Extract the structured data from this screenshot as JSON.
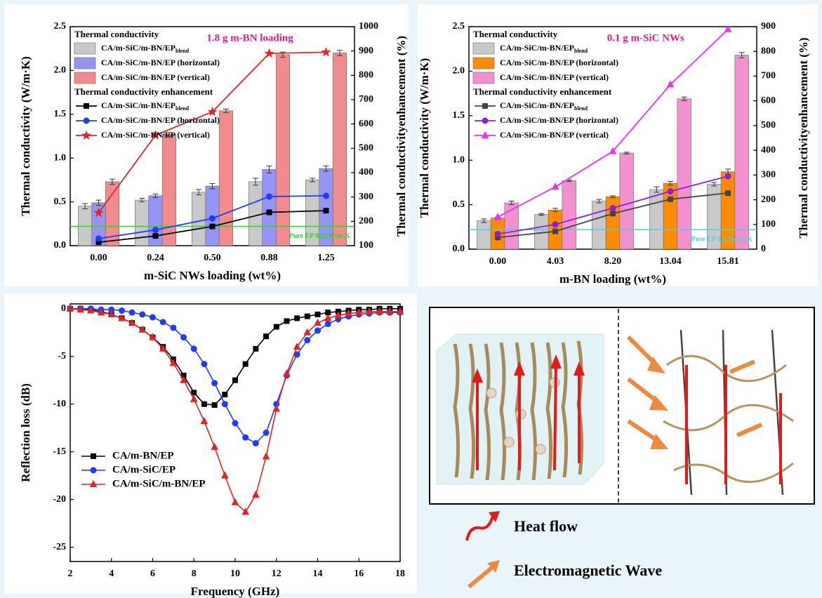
{
  "chart_data": [
    {
      "type": "bar_line",
      "categories": [
        "0.00",
        "0.24",
        "0.50",
        "0.88",
        "1.25"
      ],
      "xlabel": "m-SiC NWs loading (wt%)",
      "ylabel": "Thermal conductivity (W/m·K)",
      "y2label": "Thermal conductivityenhancement (%)",
      "ylim": [
        0,
        2.5
      ],
      "yticks": [
        {
          "value": 0,
          "label": "0.0"
        },
        0.5,
        {
          "value": 1,
          "label": "1.0"
        },
        1.5,
        {
          "value": 2,
          "label": "2.0"
        },
        2.5
      ],
      "y2lim": [
        100,
        1000
      ],
      "y2ticks": [
        100,
        200,
        300,
        400,
        500,
        600,
        700,
        800,
        900,
        1000
      ],
      "annotation": "1.8 g m-BN loading",
      "annotation_color": "#e8198b",
      "reference": {
        "value": 0.22,
        "label": "Pure EP 0.22W/m·K",
        "color": "#2fd12f"
      },
      "legend_groups": [
        "Thermal conductivity",
        "Thermal conductivity enhancement"
      ],
      "series": [
        {
          "name": "CA/m-SiC/m-BN/EP",
          "subscript": "blend",
          "type": "bar",
          "color": "#c9c9c9",
          "values": [
            0.45,
            0.52,
            0.61,
            0.73,
            0.75
          ],
          "errors": [
            0.03,
            0.02,
            0.03,
            0.04,
            0.02
          ]
        },
        {
          "name": "CA/m-SiC/m-BN/EP (horizontal)",
          "type": "bar",
          "color": "#9494f4",
          "values": [
            0.49,
            0.57,
            0.68,
            0.87,
            0.88
          ],
          "errors": [
            0.03,
            0.02,
            0.03,
            0.04,
            0.03
          ]
        },
        {
          "name": "CA/m-SiC/m-BN/EP (vertical)",
          "type": "bar",
          "color": "#f28c8c",
          "values": [
            0.73,
            1.27,
            1.54,
            2.18,
            2.2
          ],
          "errors": [
            0.03,
            0.02,
            0.02,
            0.03,
            0.03
          ]
        },
        {
          "name": "CA/m-SiC/m-BN/EP",
          "subscript": "blend",
          "type": "line",
          "axis": "y2",
          "color": "#000000",
          "marker": "square",
          "values": [
            114,
            140,
            179,
            237,
            244
          ]
        },
        {
          "name": "CA/m-SiC/m-BN/EP (horizontal)",
          "type": "line",
          "axis": "y2",
          "color": "#1f3bff",
          "marker": "circle",
          "values": [
            129,
            165,
            212,
            302,
            305
          ]
        },
        {
          "name": "CA/m-SiC/m-BN/EP (vertical)",
          "type": "line",
          "axis": "y2",
          "color": "#e32222",
          "marker": "star",
          "values": [
            235,
            554,
            650,
            890,
            895
          ]
        }
      ]
    },
    {
      "type": "bar_line",
      "categories": [
        "0.00",
        "4.03",
        "8.20",
        "13.04",
        "15.81"
      ],
      "xlabel": "m-BN loading (wt%)",
      "ylabel": "Thermal conductivity (W/m·K)",
      "y2label": "Thermal conductivityenhancement (%)",
      "ylim": [
        0,
        2.5
      ],
      "yticks": [
        {
          "value": 0,
          "label": "0.0"
        },
        0.5,
        {
          "value": 1,
          "label": "1.0"
        },
        1.5,
        {
          "value": 2,
          "label": "2.0"
        },
        2.5
      ],
      "y2lim": [
        0,
        900
      ],
      "y2ticks": [
        0,
        100,
        200,
        300,
        400,
        500,
        600,
        700,
        800,
        900
      ],
      "annotation": "0.1 g m-SiC NWs",
      "annotation_color": "#e8198b",
      "reference": {
        "value": 0.22,
        "label": "Pure EP 0.22W/m·K",
        "color": "#3cd6e0"
      },
      "legend_groups": [
        "Thermal conductivity",
        "Thermal conductivity enhancement"
      ],
      "series": [
        {
          "name": "CA/m-SiC/m-BN/EP",
          "subscript": "blend",
          "type": "bar",
          "color": "#c9c9c9",
          "values": [
            0.32,
            0.39,
            0.54,
            0.67,
            0.73
          ],
          "errors": [
            0.02,
            0.01,
            0.02,
            0.03,
            0.02
          ]
        },
        {
          "name": "CA/m-SiC/m-BN/EP (horizontal)",
          "type": "bar",
          "color": "#ff8c00",
          "values": [
            0.35,
            0.44,
            0.59,
            0.74,
            0.87
          ],
          "errors": [
            0.01,
            0.02,
            0.01,
            0.02,
            0.03
          ]
        },
        {
          "name": "CA/m-SiC/m-BN/EP (vertical)",
          "type": "bar",
          "color": "#f590d0",
          "values": [
            0.52,
            0.77,
            1.08,
            1.69,
            2.18
          ],
          "errors": [
            0.02,
            0.01,
            0.01,
            0.02,
            0.03
          ]
        },
        {
          "name": "CA/m-SiC/m-BN/EP",
          "subscript": "blend",
          "type": "line",
          "axis": "y2",
          "color": "#444444",
          "marker": "square",
          "values": [
            47,
            72,
            144,
            202,
            227
          ]
        },
        {
          "name": "CA/m-SiC/m-BN/EP (horizontal)",
          "type": "line",
          "axis": "y2",
          "color": "#8a1fe0",
          "marker": "circle",
          "values": [
            61,
            100,
            166,
            234,
            295
          ]
        },
        {
          "name": "CA/m-SiC/m-BN/EP (vertical)",
          "type": "line",
          "axis": "y2",
          "color": "#f030f0",
          "marker": "triangle",
          "values": [
            130,
            252,
            396,
            666,
            889
          ]
        }
      ]
    },
    {
      "type": "line",
      "xlabel": "Frequency (GHz)",
      "ylabel": "Reflection loss (dB)",
      "xlim": [
        2,
        18
      ],
      "xticks": [
        2,
        4,
        6,
        8,
        10,
        12,
        14,
        16,
        18
      ],
      "ylim": [
        -26.5,
        0.5
      ],
      "yticks": [
        0,
        -5,
        -10,
        -15,
        -20,
        -25
      ],
      "x": [
        2,
        2.5,
        3,
        3.5,
        4,
        4.5,
        5,
        5.5,
        6,
        6.5,
        7,
        7.5,
        8,
        8.5,
        9,
        9.5,
        10,
        10.5,
        11,
        11.5,
        12,
        12.5,
        13,
        13.5,
        14,
        14.5,
        15,
        15.5,
        16,
        16.5,
        17,
        17.5,
        18
      ],
      "series": [
        {
          "name": "CA/m-BN/EP",
          "color": "#000000",
          "marker": "square",
          "values": [
            0,
            0,
            -0.1,
            -0.3,
            -0.6,
            -1.0,
            -1.5,
            -2.2,
            -3.0,
            -4.0,
            -5.3,
            -7.0,
            -8.8,
            -10.0,
            -10.1,
            -9.0,
            -7.5,
            -5.8,
            -4.2,
            -2.9,
            -1.9,
            -1.3,
            -1.0,
            -0.8,
            -0.6,
            -0.4,
            -0.3,
            -0.2,
            -0.1,
            -0.1,
            0,
            0,
            0
          ]
        },
        {
          "name": "CA/m-SiC/EP",
          "color": "#1f3bff",
          "marker": "circle",
          "values": [
            0,
            0,
            0,
            -0.1,
            -0.1,
            -0.2,
            -0.4,
            -0.6,
            -0.9,
            -1.4,
            -2.0,
            -3.0,
            -4.2,
            -5.8,
            -7.8,
            -10.0,
            -12.0,
            -13.5,
            -14.1,
            -13.0,
            -10.0,
            -7.0,
            -4.8,
            -3.3,
            -2.3,
            -1.6,
            -1.1,
            -0.8,
            -0.6,
            -0.5,
            -0.4,
            -0.4,
            -0.4
          ]
        },
        {
          "name": "CA/m-SiC/m-BN/EP",
          "color": "#e32222",
          "marker": "triangle",
          "values": [
            0,
            -0.1,
            -0.2,
            -0.4,
            -0.6,
            -1.0,
            -1.5,
            -2.2,
            -3.0,
            -4.2,
            -5.7,
            -7.5,
            -9.5,
            -11.8,
            -14.5,
            -17.5,
            -20.3,
            -21.3,
            -19.5,
            -15.5,
            -10.5,
            -6.8,
            -4.0,
            -2.5,
            -1.5,
            -1.0,
            -0.7,
            -0.5,
            -0.4,
            -0.3,
            -0.3,
            -0.3,
            -0.3
          ]
        }
      ]
    }
  ],
  "diagram": {
    "legend": [
      "Heat flow",
      "Electromagnetic Wave"
    ]
  }
}
